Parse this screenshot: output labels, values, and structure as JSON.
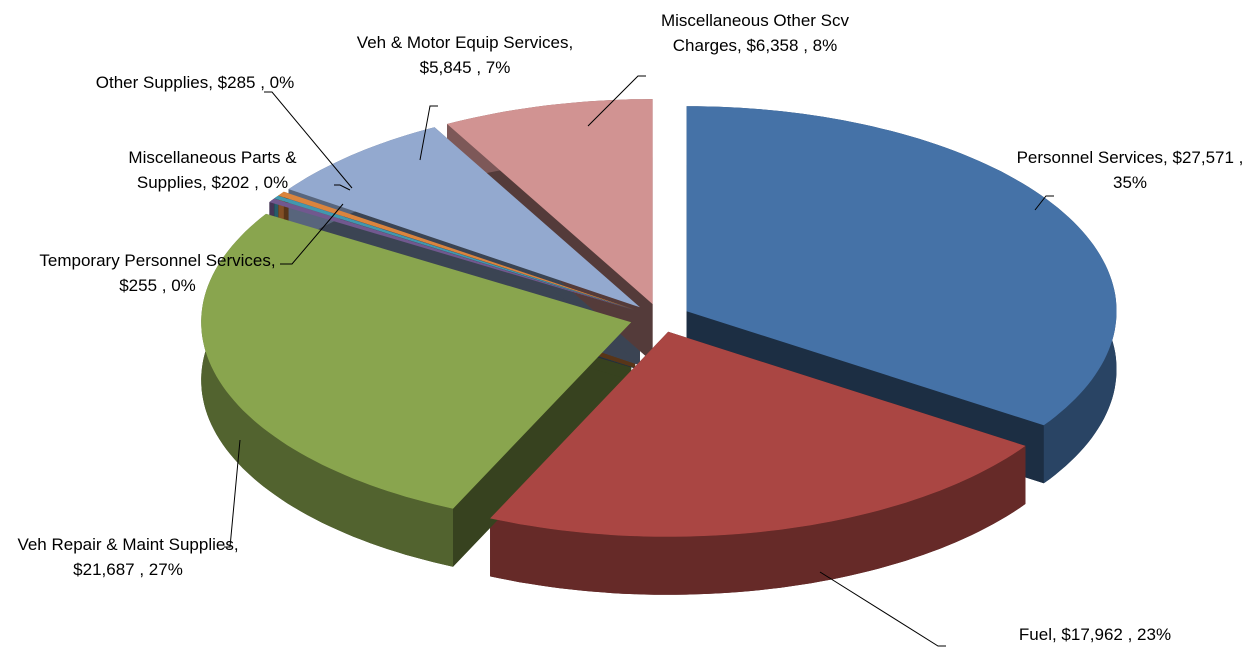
{
  "chart_data": {
    "type": "pie",
    "values": [
      27571,
      17962,
      21687,
      255,
      202,
      285,
      5845,
      6358
    ],
    "value_labels": [
      "Personnel Services, $27,571 , 35%",
      "Fuel,  $17,962 , 23%",
      "Veh Repair & Maint Supplies, $21,687 , 27%",
      "Temporary Personnel Services, $255 , 0%",
      "Miscellaneous Parts & Supplies, $202 , 0%",
      "Other Supplies, $285 , 0%",
      "Veh & Motor Equip Services, $5,845 , 7%",
      "Miscellaneous Other Scv Charges, $6,358 , 8%"
    ],
    "colors": [
      "#4572a7",
      "#aa4643",
      "#89a54e",
      "#71588f",
      "#4198af",
      "#db843d",
      "#93a9cf",
      "#d19392"
    ]
  }
}
